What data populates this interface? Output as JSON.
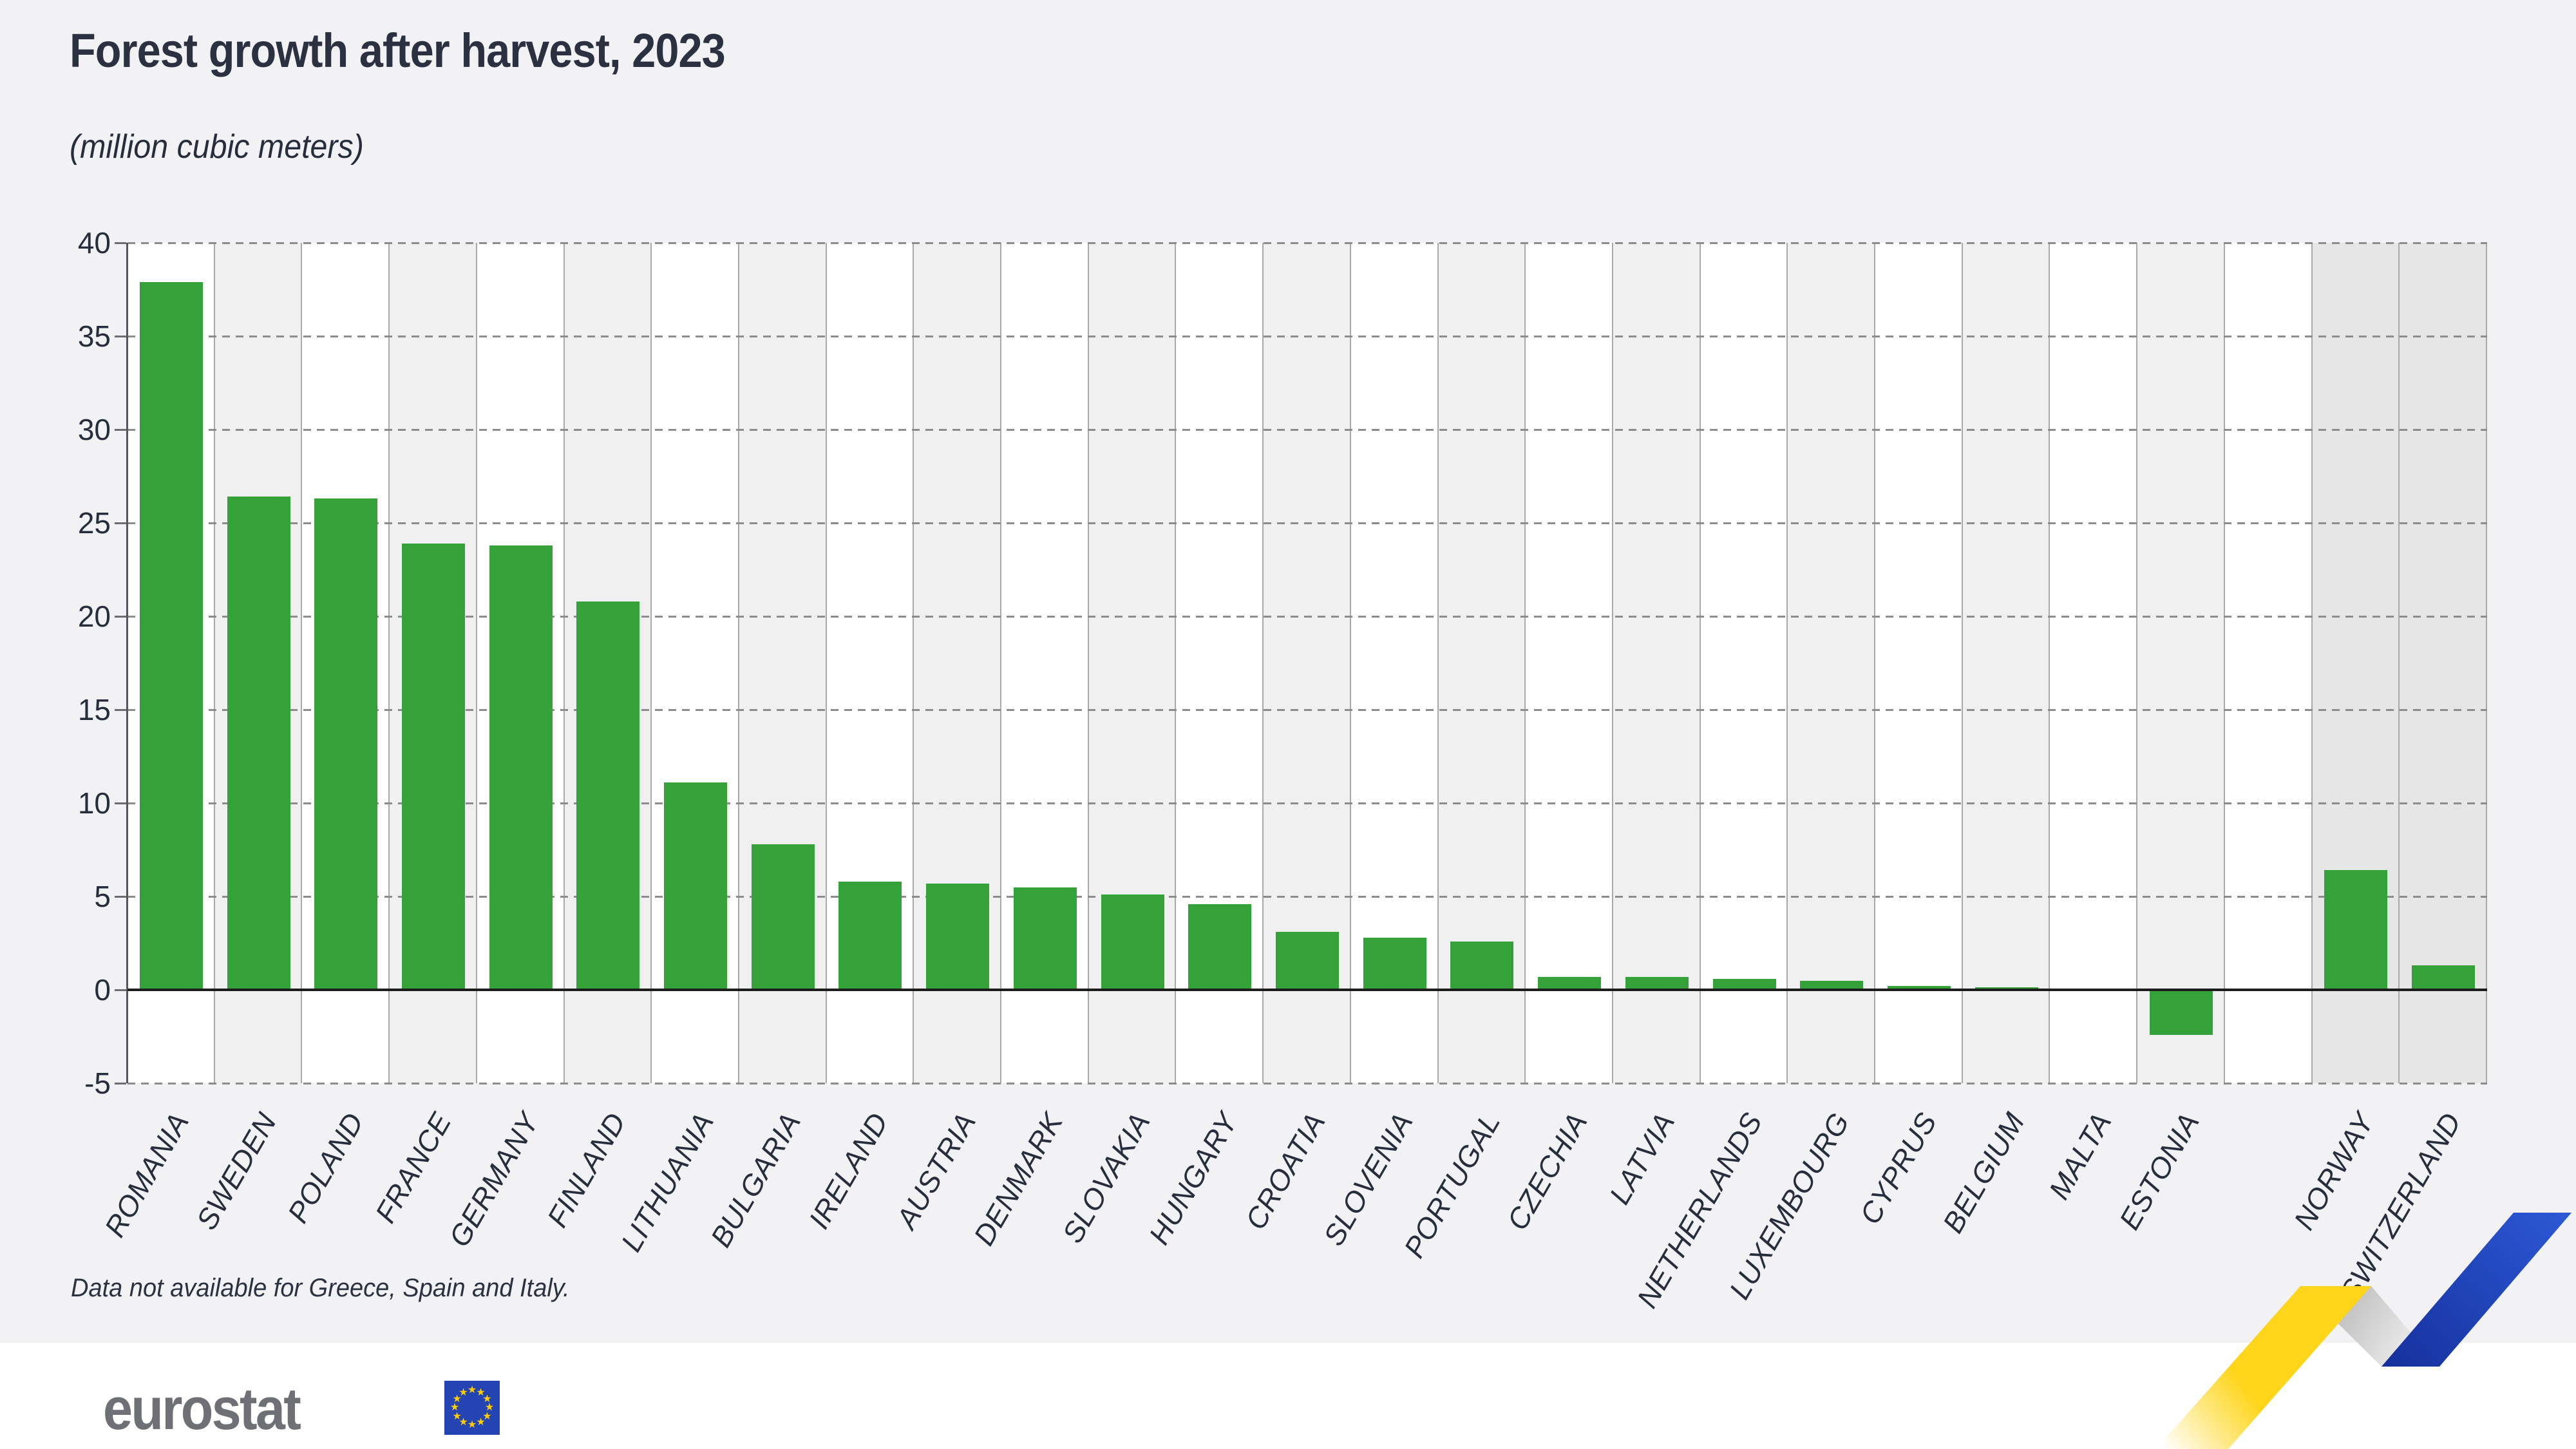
{
  "page": {
    "background_color": "#f2f2f4",
    "footer_background_color": "#ffffff",
    "footnote": "Data not available for Greece, Spain and Italy.",
    "brand": {
      "logo_text": "eurostat",
      "logo_text_color": "#6e7075",
      "flag_color": "#2444b4",
      "star_color": "#ffcc00"
    },
    "ribbon_colors": {
      "yellow": "#fed51a",
      "grey_dark": "#ababab",
      "grey_light": "#fbfbfb",
      "blue_top": "#2b57d4",
      "blue_bottom": "#16319d"
    }
  },
  "chart_data": {
    "type": "bar",
    "title": "Forest growth after harvest, 2023",
    "unit_label": "(million cubic meters)",
    "xlabel": "",
    "ylabel": "",
    "ylim": [
      -5,
      40
    ],
    "yticks": [
      40,
      35,
      30,
      25,
      20,
      15,
      10,
      5,
      0,
      -5
    ],
    "grid": "horizontal dashed gridlines every 5 units, solid dark zero line",
    "legend": "none",
    "bar_color": "#35a139",
    "band_fill_white": "#ffffff",
    "band_fill_alt": "#f0f0f1",
    "efta_band_fill": "#e6e6e7",
    "bands": [
      {
        "label": "ROMANIA",
        "value": 37.9,
        "group": "eu"
      },
      {
        "label": "SWEDEN",
        "value": 26.4,
        "group": "eu"
      },
      {
        "label": "POLAND",
        "value": 26.3,
        "group": "eu"
      },
      {
        "label": "FRANCE",
        "value": 23.9,
        "group": "eu"
      },
      {
        "label": "GERMANY",
        "value": 23.8,
        "group": "eu"
      },
      {
        "label": "FINLAND",
        "value": 20.8,
        "group": "eu"
      },
      {
        "label": "LITHUANIA",
        "value": 11.1,
        "group": "eu"
      },
      {
        "label": "BULGARIA",
        "value": 7.8,
        "group": "eu"
      },
      {
        "label": "IRELAND",
        "value": 5.8,
        "group": "eu"
      },
      {
        "label": "AUSTRIA",
        "value": 5.7,
        "group": "eu"
      },
      {
        "label": "DENMARK",
        "value": 5.5,
        "group": "eu"
      },
      {
        "label": "SLOVAKIA",
        "value": 5.1,
        "group": "eu"
      },
      {
        "label": "HUNGARY",
        "value": 4.6,
        "group": "eu"
      },
      {
        "label": "CROATIA",
        "value": 3.1,
        "group": "eu"
      },
      {
        "label": "SLOVENIA",
        "value": 2.8,
        "group": "eu"
      },
      {
        "label": "PORTUGAL",
        "value": 2.6,
        "group": "eu"
      },
      {
        "label": "CZECHIA",
        "value": 0.7,
        "group": "eu"
      },
      {
        "label": "LATVIA",
        "value": 0.7,
        "group": "eu"
      },
      {
        "label": "NETHERLANDS",
        "value": 0.6,
        "group": "eu"
      },
      {
        "label": "LUXEMBOURG",
        "value": 0.5,
        "group": "eu"
      },
      {
        "label": "CYPRUS",
        "value": 0.2,
        "group": "eu"
      },
      {
        "label": "BELGIUM",
        "value": 0.15,
        "group": "eu"
      },
      {
        "label": "MALTA",
        "value": 0.0,
        "group": "eu"
      },
      {
        "label": "ESTONIA",
        "value": -2.4,
        "group": "eu"
      },
      {
        "label": "",
        "value": null,
        "group": "spacer"
      },
      {
        "label": "NORWAY",
        "value": 6.4,
        "group": "efta"
      },
      {
        "label": "SWITZERLAND",
        "value": 1.3,
        "group": "efta"
      }
    ]
  }
}
